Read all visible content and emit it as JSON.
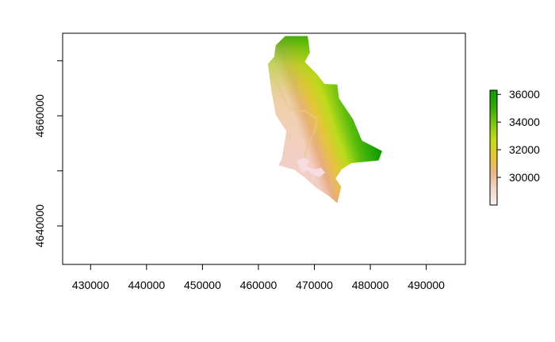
{
  "map": {
    "type": "raster",
    "x_range": [
      425000,
      497000
    ],
    "y_range": [
      4633000,
      4675000
    ],
    "x_ticks": [
      430000,
      440000,
      450000,
      460000,
      470000,
      480000,
      490000
    ],
    "x_tick_labels": [
      "430000",
      "440000",
      "450000",
      "460000",
      "470000",
      "480000",
      "490000"
    ],
    "y_ticks": [
      4640000,
      4650000,
      4660000,
      4670000
    ],
    "y_tick_labels": [
      "4640000",
      "",
      "4660000",
      ""
    ],
    "boundary": [
      [
        465400,
        4674500
      ],
      [
        468800,
        4674500
      ],
      [
        469200,
        4671500
      ],
      [
        468300,
        4669800
      ],
      [
        470500,
        4667500
      ],
      [
        471800,
        4665800
      ],
      [
        474100,
        4665700
      ],
      [
        474400,
        4663200
      ],
      [
        475300,
        4661800
      ],
      [
        476900,
        4659400
      ],
      [
        478500,
        4655500
      ],
      [
        482100,
        4653600
      ],
      [
        481500,
        4651900
      ],
      [
        476600,
        4651400
      ],
      [
        474900,
        4650300
      ],
      [
        473800,
        4648600
      ],
      [
        474800,
        4647100
      ],
      [
        474100,
        4644100
      ],
      [
        472500,
        4645500
      ],
      [
        470500,
        4646800
      ],
      [
        468300,
        4648800
      ],
      [
        466400,
        4650200
      ],
      [
        463600,
        4651000
      ],
      [
        464200,
        4652200
      ],
      [
        465000,
        4657200
      ],
      [
        463100,
        4660200
      ],
      [
        462300,
        4664700
      ],
      [
        461700,
        4669400
      ],
      [
        462800,
        4670700
      ],
      [
        463100,
        4672800
      ],
      [
        464800,
        4674500
      ]
    ],
    "colormap": [
      "#f8f2f2",
      "#f1d6ca",
      "#e9b886",
      "#e6c437",
      "#c1dc12",
      "#7ec70f",
      "#2bab00",
      "#0d9b00"
    ]
  },
  "legend": {
    "range": [
      28000,
      36300
    ],
    "ticks": [
      30000,
      32000,
      34000,
      36000
    ],
    "tick_labels": [
      "30000",
      "32000",
      "34000",
      "36000"
    ]
  }
}
